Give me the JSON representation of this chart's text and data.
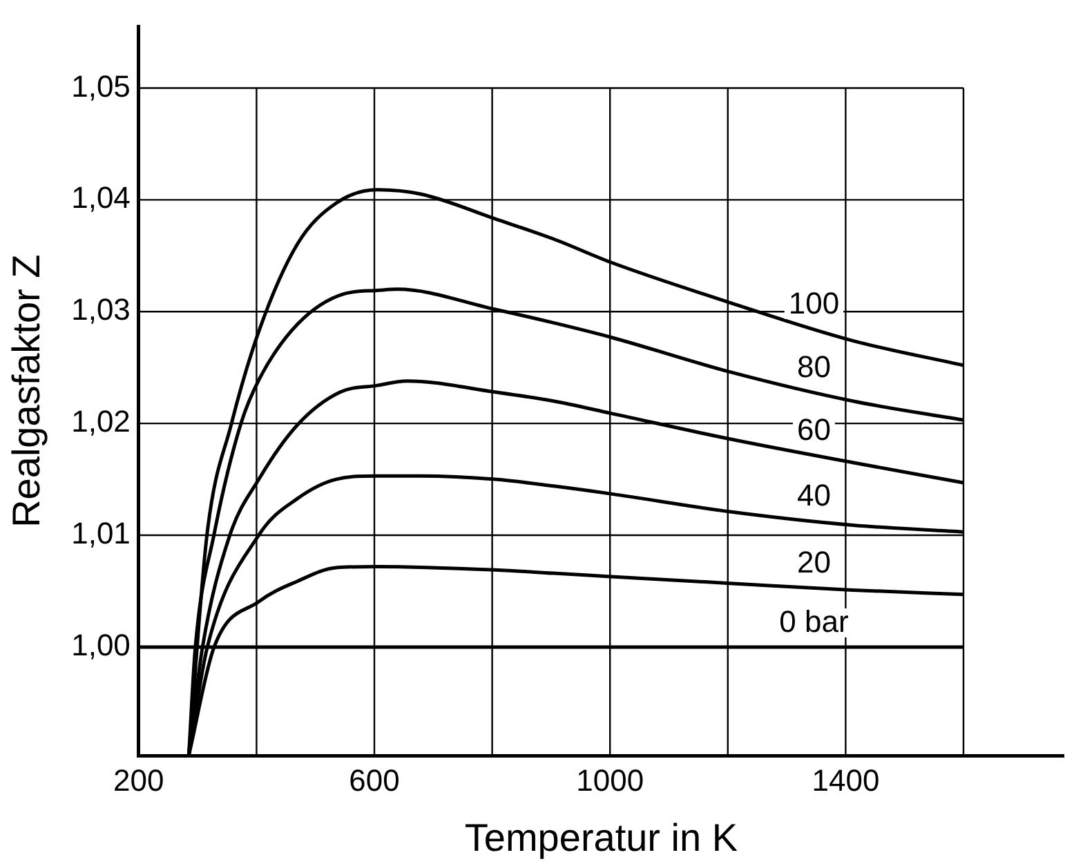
{
  "chart_data": {
    "type": "line",
    "xlabel": "Temperatur in K",
    "ylabel": "Realgasfaktor Z",
    "xlim": [
      200,
      1770
    ],
    "ylim": [
      0.9903,
      1.0555
    ],
    "xticks": [
      200,
      {
        "value": 400,
        "label": null
      },
      600,
      {
        "value": 800,
        "label": null
      },
      1000,
      {
        "value": 1200,
        "label": null
      },
      1400,
      {
        "value": 1600,
        "label": null
      }
    ],
    "yticks": [
      {
        "value": 1.0,
        "label": "1,00"
      },
      {
        "value": 1.01,
        "label": "1,01"
      },
      {
        "value": 1.02,
        "label": "1,02"
      },
      {
        "value": 1.03,
        "label": "1,03"
      },
      {
        "value": 1.04,
        "label": "1,04"
      },
      {
        "value": 1.05,
        "label": "1,05"
      }
    ],
    "grid": true,
    "legend": false,
    "marker": "none",
    "line_style": "solid",
    "series": [
      {
        "name": "100",
        "color": "#000000",
        "x": [
          285,
          316,
          357,
          405,
          470,
          535,
          605,
          680,
          805,
          904,
          1002,
          1204,
          1412,
          1600
        ],
        "values": [
          0.9903,
          1.0101,
          1.0199,
          1.0284,
          1.0361,
          1.0397,
          1.0409,
          1.0405,
          1.0383,
          1.0365,
          1.0344,
          1.0308,
          1.0274,
          1.0252
        ]
      },
      {
        "name": "80",
        "color": "#000000",
        "x": [
          285,
          296,
          328,
          373,
          405,
          470,
          549,
          605,
          639,
          805,
          904,
          1002,
          1204,
          1412,
          1600
        ],
        "values": [
          0.9903,
          0.9999,
          1.0101,
          1.0199,
          1.024,
          1.0289,
          1.0316,
          1.0319,
          1.032,
          1.0302,
          1.029,
          1.0277,
          1.0246,
          1.022,
          1.0203
        ]
      },
      {
        "name": "60",
        "color": "#000000",
        "x": [
          285,
          308,
          354,
          405,
          470,
          542,
          605,
          655,
          805,
          904,
          1002,
          1204,
          1412,
          1600
        ],
        "values": [
          0.9903,
          0.9999,
          1.0099,
          1.0151,
          1.0199,
          1.0228,
          1.0234,
          1.0238,
          1.0228,
          1.022,
          1.0209,
          1.0186,
          1.0165,
          1.0147
        ]
      },
      {
        "name": "40",
        "color": "#000000",
        "x": [
          285,
          316,
          405,
          470,
          535,
          605,
          680,
          805,
          904,
          1002,
          1204,
          1412,
          1600
        ],
        "values": [
          0.9903,
          0.9999,
          1.0101,
          1.0133,
          1.015,
          1.0153,
          1.0153,
          1.015,
          1.0144,
          1.0137,
          1.0121,
          1.0109,
          1.0103
        ]
      },
      {
        "name": "20",
        "color": "#000000",
        "x": [
          285,
          328,
          405,
          470,
          535,
          605,
          805,
          904,
          1002,
          1204,
          1412,
          1600
        ],
        "values": [
          0.9903,
          1.0,
          1.0041,
          1.0059,
          1.0071,
          1.0072,
          1.0069,
          1.0066,
          1.0063,
          1.0057,
          1.0051,
          1.0047
        ]
      },
      {
        "name": "0 bar",
        "color": "#000000",
        "x": [
          200,
          1600
        ],
        "values": [
          1.0,
          1.0
        ]
      }
    ]
  }
}
